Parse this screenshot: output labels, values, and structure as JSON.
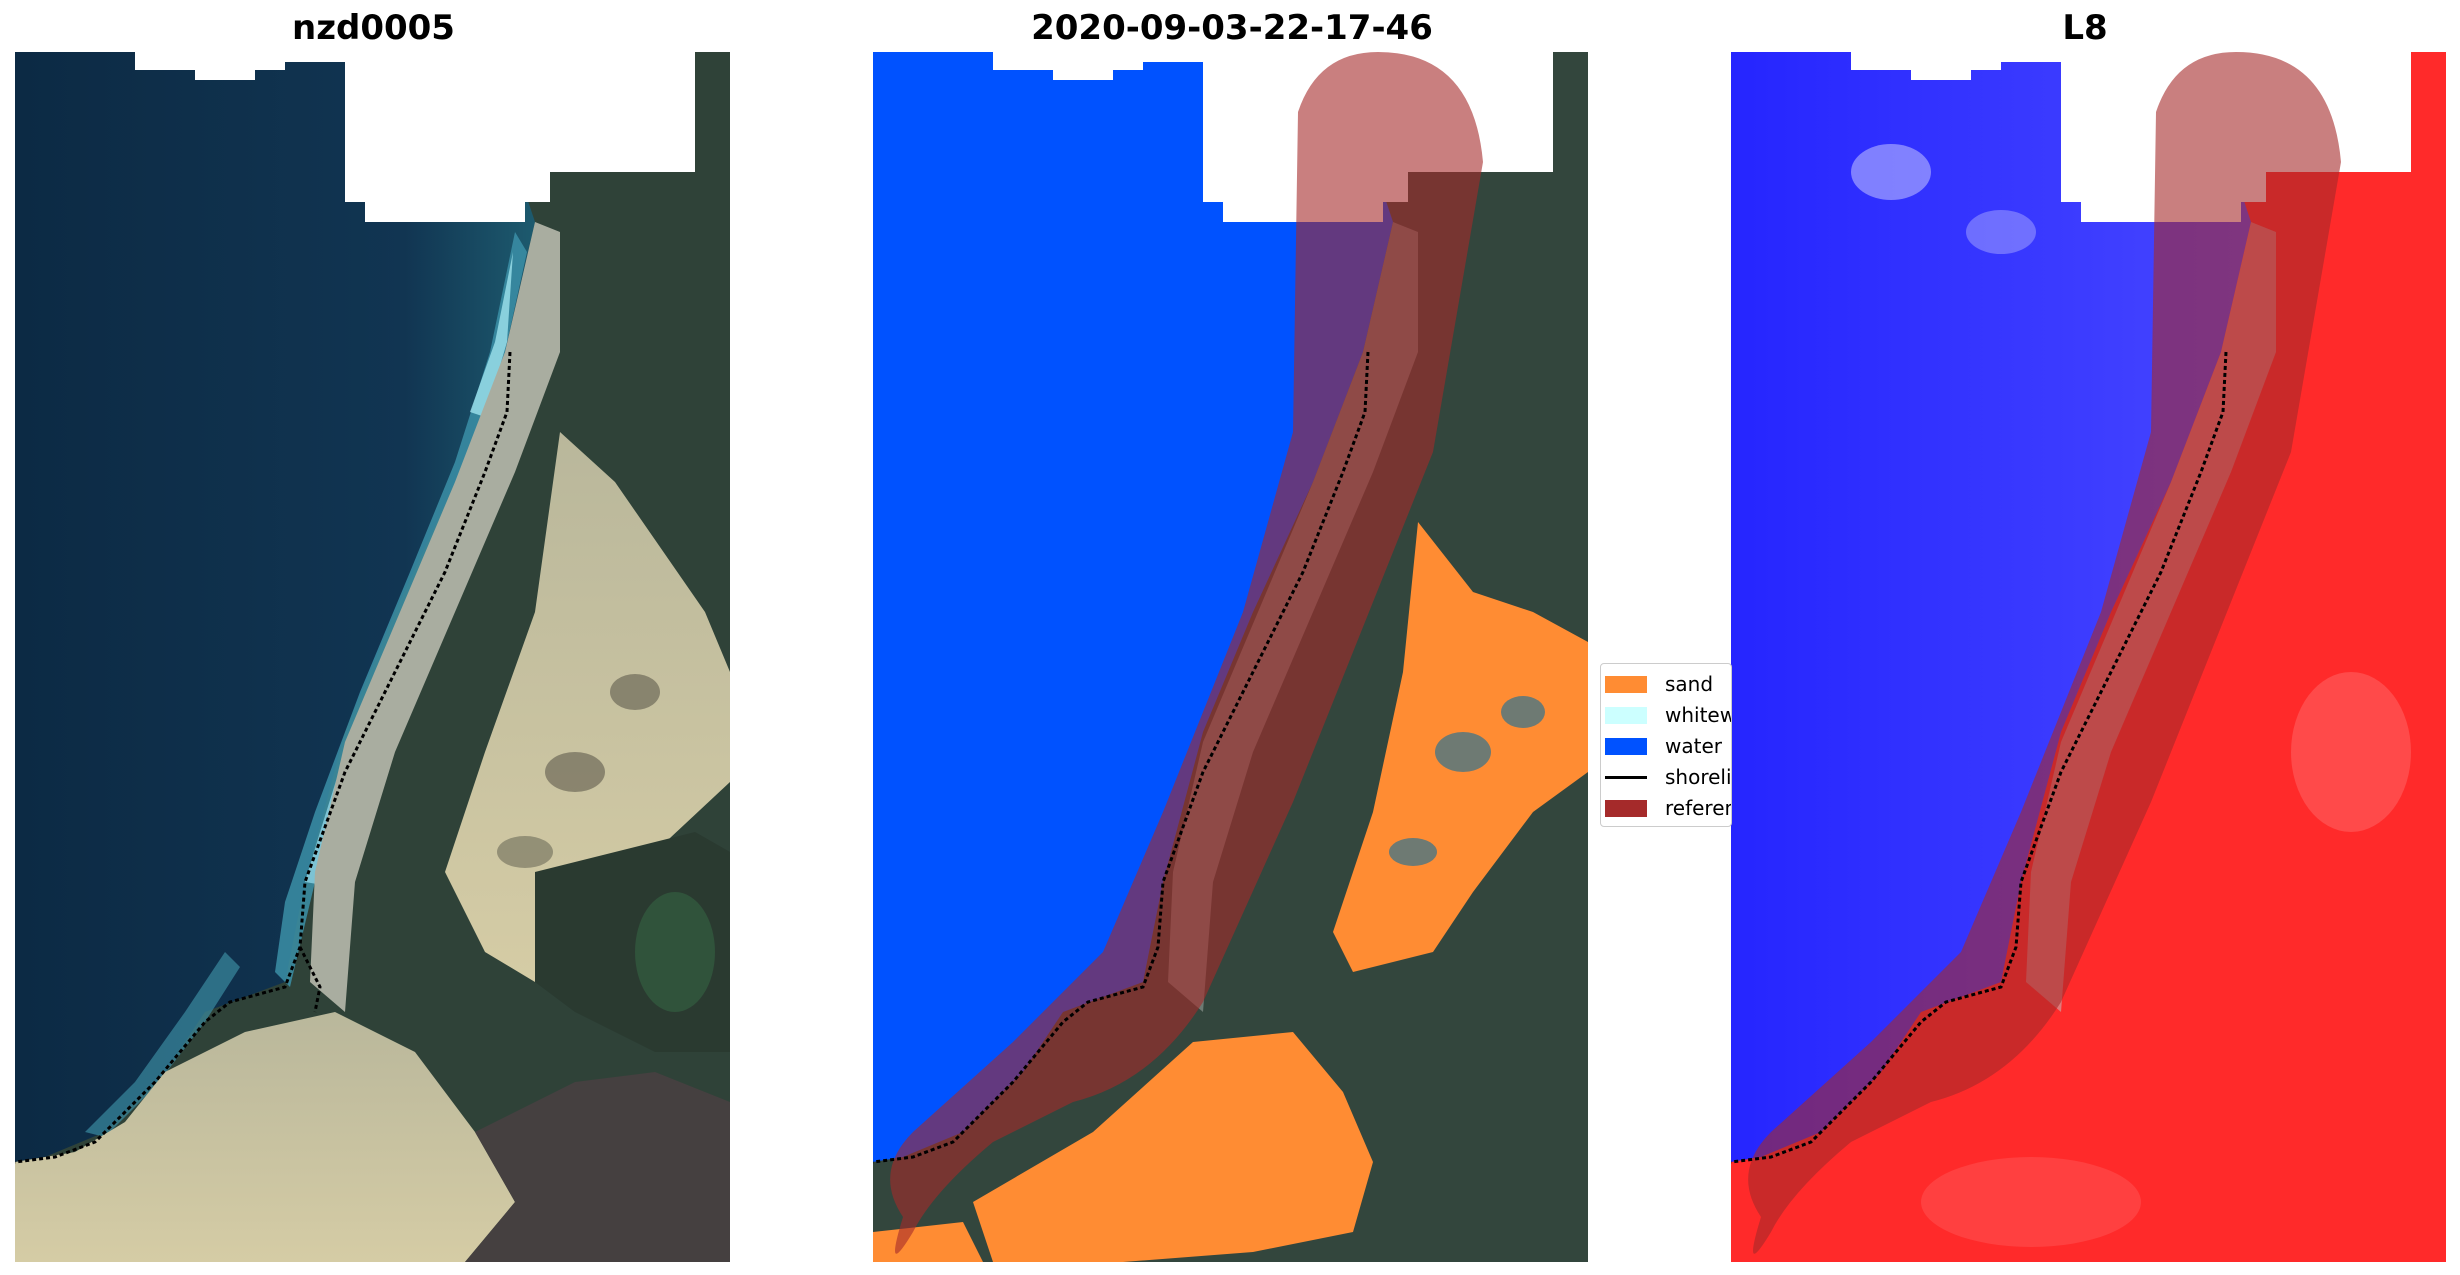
{
  "panels": [
    {
      "title": "nzd0005"
    },
    {
      "title": "2020-09-03-22-17-46"
    },
    {
      "title": "L8"
    }
  ],
  "legend": {
    "items": [
      {
        "label": "sand",
        "color": "#ff8c33"
      },
      {
        "label": "whitewater",
        "color": "#ccffff"
      },
      {
        "label": "water",
        "color": "#0052ff"
      },
      {
        "label": "shoreline",
        "color": "#000000",
        "kind": "line"
      },
      {
        "label": "reference shoreline buffer",
        "color": "#a52a2a"
      }
    ]
  },
  "colors": {
    "ocean": "#0f2f48",
    "dune_sand": "#c7c29a",
    "vegetation": "#2a3c35",
    "water_class": "#0052ff",
    "sand_class": "#ff8c33",
    "buffer": "#a52a2a",
    "index_water": "#2b2bff",
    "index_land": "#ff2020",
    "nodata": "#ffffff"
  }
}
